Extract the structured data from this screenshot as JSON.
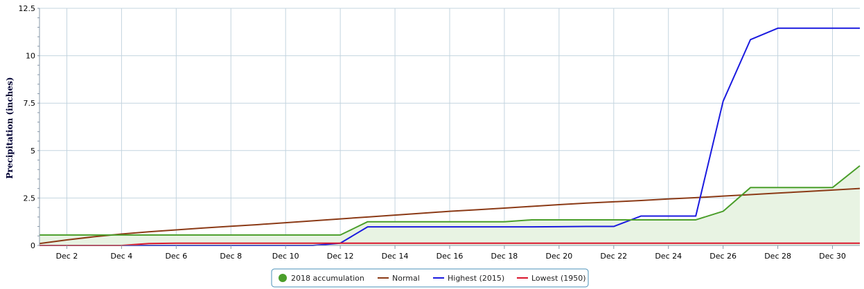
{
  "chart_data": {
    "type": "line",
    "ylabel": "Precipitation (inches)",
    "ylim": [
      0,
      12.5
    ],
    "y_ticks": [
      "0",
      "2.5",
      "5",
      "7.5",
      "10",
      "12.5"
    ],
    "x_tick_labels": [
      "Dec 2",
      "Dec 4",
      "Dec 6",
      "Dec 8",
      "Dec 10",
      "Dec 12",
      "Dec 14",
      "Dec 16",
      "Dec 18",
      "Dec 20",
      "Dec 22",
      "Dec 24",
      "Dec 26",
      "Dec 28",
      "Dec 30"
    ],
    "x_days": [
      1,
      2,
      3,
      4,
      5,
      6,
      7,
      8,
      9,
      10,
      11,
      12,
      13,
      14,
      15,
      16,
      17,
      18,
      19,
      20,
      21,
      22,
      23,
      24,
      25,
      26,
      27,
      28,
      29,
      30,
      31
    ],
    "grid": true,
    "legend_position": "bottom-center",
    "series": [
      {
        "name": "2018 accumulation",
        "color": "#4a9e2a",
        "fill": "#e8f3e3",
        "marker": "circle",
        "values": [
          0.55,
          0.55,
          0.55,
          0.55,
          0.55,
          0.55,
          0.55,
          0.55,
          0.55,
          0.55,
          0.55,
          0.55,
          1.25,
          1.25,
          1.25,
          1.25,
          1.25,
          1.25,
          1.35,
          1.35,
          1.35,
          1.35,
          1.35,
          1.35,
          1.35,
          1.8,
          3.05,
          3.05,
          3.05,
          3.05,
          4.2
        ]
      },
      {
        "name": "Normal",
        "color": "#8b3a16",
        "values": [
          0.1,
          0.29,
          0.46,
          0.6,
          0.72,
          0.82,
          0.92,
          1.01,
          1.1,
          1.2,
          1.3,
          1.4,
          1.5,
          1.6,
          1.7,
          1.8,
          1.88,
          1.97,
          2.06,
          2.15,
          2.23,
          2.3,
          2.37,
          2.45,
          2.52,
          2.6,
          2.68,
          2.76,
          2.84,
          2.92,
          3.0
        ]
      },
      {
        "name": "Highest (2015)",
        "color": "#1a1adf",
        "values": [
          0,
          0,
          0,
          0,
          0,
          0,
          0,
          0,
          0,
          0,
          0,
          0.12,
          0.98,
          0.98,
          0.98,
          0.98,
          0.98,
          0.98,
          0.98,
          0.99,
          1.0,
          1.0,
          1.55,
          1.55,
          1.55,
          7.6,
          10.85,
          11.45,
          11.45,
          11.45,
          11.45
        ]
      },
      {
        "name": "Lowest (1950)",
        "color": "#d9152b",
        "values": [
          0,
          0,
          0,
          0,
          0.1,
          0.12,
          0.12,
          0.12,
          0.12,
          0.12,
          0.12,
          0.12,
          0.12,
          0.12,
          0.12,
          0.12,
          0.12,
          0.12,
          0.12,
          0.12,
          0.12,
          0.12,
          0.12,
          0.12,
          0.12,
          0.12,
          0.12,
          0.12,
          0.12,
          0.12,
          0.12
        ]
      }
    ]
  }
}
